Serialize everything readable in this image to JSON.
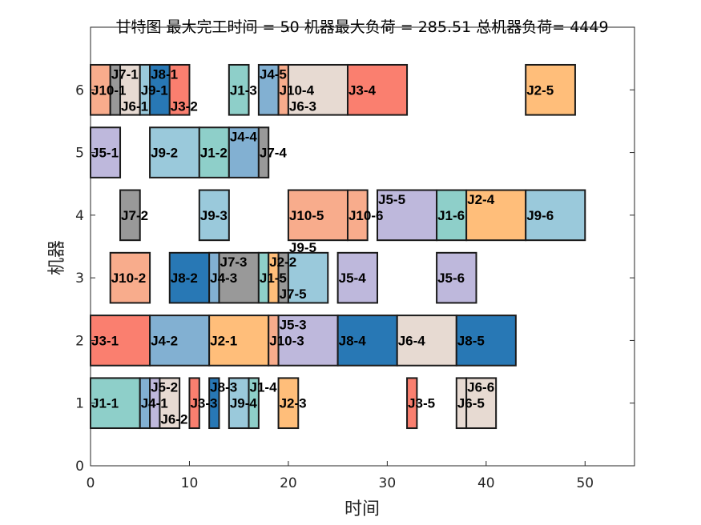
{
  "chart_data": {
    "type": "gantt",
    "title": "甘特图 最大完工时间 = 50 机器最大负荷 = 285.51 总机器负荷= 4449",
    "xlabel": "时间",
    "ylabel": "机器",
    "xlim": [
      0,
      55
    ],
    "ylim": [
      0,
      7
    ],
    "xticks": [
      "0",
      "10",
      "20",
      "30",
      "40",
      "50"
    ],
    "yticks": [
      "0",
      "1",
      "2",
      "3",
      "4",
      "5",
      "6"
    ],
    "job_colors": {
      "J1": "#8ECFC9",
      "J2": "#FFBE7A",
      "J3": "#FA7F6F",
      "J4": "#82B0D2",
      "J5": "#BEB8DC",
      "J6": "#E7DAD2",
      "J7": "#999999",
      "J8": "#2878B5",
      "J9": "#9AC9DB",
      "J10": "#F8AC8C"
    },
    "tasks": [
      {
        "machine": 1,
        "job": "J1",
        "label": "J1-1",
        "start": 0,
        "end": 5
      },
      {
        "machine": 1,
        "job": "J4",
        "label": "J4-1",
        "start": 5,
        "end": 6
      },
      {
        "machine": 1,
        "job": "J5",
        "label": "J5-2",
        "start": 6,
        "end": 7
      },
      {
        "machine": 1,
        "job": "J6",
        "label": "J6-2",
        "start": 7,
        "end": 9
      },
      {
        "machine": 1,
        "job": "J3",
        "label": "J3-3",
        "start": 10,
        "end": 11
      },
      {
        "machine": 1,
        "job": "J8",
        "label": "J8-3",
        "start": 12,
        "end": 13
      },
      {
        "machine": 1,
        "job": "J9",
        "label": "J9-4",
        "start": 14,
        "end": 16
      },
      {
        "machine": 1,
        "job": "J1",
        "label": "J1-4",
        "start": 16,
        "end": 17
      },
      {
        "machine": 1,
        "job": "J2",
        "label": "J2-3",
        "start": 19,
        "end": 21
      },
      {
        "machine": 1,
        "job": "J3",
        "label": "J3-5",
        "start": 32,
        "end": 33
      },
      {
        "machine": 1,
        "job": "J6",
        "label": "J6-5",
        "start": 37,
        "end": 38
      },
      {
        "machine": 1,
        "job": "J6",
        "label": "J6-6",
        "start": 38,
        "end": 41
      },
      {
        "machine": 2,
        "job": "J3",
        "label": "J3-1",
        "start": 0,
        "end": 6
      },
      {
        "machine": 2,
        "job": "J4",
        "label": "J4-2",
        "start": 6,
        "end": 12
      },
      {
        "machine": 2,
        "job": "J2",
        "label": "J2-1",
        "start": 12,
        "end": 18
      },
      {
        "machine": 2,
        "job": "J10",
        "label": "J10-3",
        "start": 18,
        "end": 19
      },
      {
        "machine": 2,
        "job": "J5",
        "label": "J5-3",
        "start": 19,
        "end": 25
      },
      {
        "machine": 2,
        "job": "J8",
        "label": "J8-4",
        "start": 25,
        "end": 31
      },
      {
        "machine": 2,
        "job": "J6",
        "label": "J6-4",
        "start": 31,
        "end": 37
      },
      {
        "machine": 2,
        "job": "J8",
        "label": "J8-5",
        "start": 37,
        "end": 43
      },
      {
        "machine": 3,
        "job": "J10",
        "label": "J10-2",
        "start": 2,
        "end": 6
      },
      {
        "machine": 3,
        "job": "J8",
        "label": "J8-2",
        "start": 8,
        "end": 12
      },
      {
        "machine": 3,
        "job": "J4",
        "label": "J4-3",
        "start": 12,
        "end": 13
      },
      {
        "machine": 3,
        "job": "J7",
        "label": "J7-3",
        "start": 13,
        "end": 17
      },
      {
        "machine": 3,
        "job": "J1",
        "label": "J1-5",
        "start": 17,
        "end": 18
      },
      {
        "machine": 3,
        "job": "J2",
        "label": "J2-2",
        "start": 18,
        "end": 19
      },
      {
        "machine": 3,
        "job": "J7",
        "label": "J7-5",
        "start": 19,
        "end": 20
      },
      {
        "machine": 3,
        "job": "J9",
        "label": "J9-5",
        "start": 20,
        "end": 24
      },
      {
        "machine": 3,
        "job": "J5",
        "label": "J5-4",
        "start": 25,
        "end": 29
      },
      {
        "machine": 3,
        "job": "J5",
        "label": "J5-6",
        "start": 35,
        "end": 39
      },
      {
        "machine": 4,
        "job": "J7",
        "label": "J7-2",
        "start": 3,
        "end": 5
      },
      {
        "machine": 4,
        "job": "J9",
        "label": "J9-3",
        "start": 11,
        "end": 14
      },
      {
        "machine": 4,
        "job": "J10",
        "label": "J10-5",
        "start": 20,
        "end": 26
      },
      {
        "machine": 4,
        "job": "J10",
        "label": "J10-6",
        "start": 26,
        "end": 28
      },
      {
        "machine": 4,
        "job": "J5",
        "label": "J5-5",
        "start": 29,
        "end": 35
      },
      {
        "machine": 4,
        "job": "J1",
        "label": "J1-6",
        "start": 35,
        "end": 38
      },
      {
        "machine": 4,
        "job": "J2",
        "label": "J2-4",
        "start": 38,
        "end": 44
      },
      {
        "machine": 4,
        "job": "J9",
        "label": "J9-6",
        "start": 44,
        "end": 50
      },
      {
        "machine": 5,
        "job": "J5",
        "label": "J5-1",
        "start": 0,
        "end": 3
      },
      {
        "machine": 5,
        "job": "J9",
        "label": "J9-2",
        "start": 6,
        "end": 11
      },
      {
        "machine": 5,
        "job": "J1",
        "label": "J1-2",
        "start": 11,
        "end": 14
      },
      {
        "machine": 5,
        "job": "J4",
        "label": "J4-4",
        "start": 14,
        "end": 17
      },
      {
        "machine": 5,
        "job": "J7",
        "label": "J7-4",
        "start": 17,
        "end": 18
      },
      {
        "machine": 6,
        "job": "J10",
        "label": "J10-1",
        "start": 0,
        "end": 2
      },
      {
        "machine": 6,
        "job": "J7",
        "label": "J7-1",
        "start": 2,
        "end": 3
      },
      {
        "machine": 6,
        "job": "J6",
        "label": "J6-1",
        "start": 3,
        "end": 5
      },
      {
        "machine": 6,
        "job": "J9",
        "label": "J9-1",
        "start": 5,
        "end": 6
      },
      {
        "machine": 6,
        "job": "J8",
        "label": "J8-1",
        "start": 6,
        "end": 8
      },
      {
        "machine": 6,
        "job": "J3",
        "label": "J3-2",
        "start": 8,
        "end": 10
      },
      {
        "machine": 6,
        "job": "J1",
        "label": "J1-3",
        "start": 14,
        "end": 16
      },
      {
        "machine": 6,
        "job": "J4",
        "label": "J4-5",
        "start": 17,
        "end": 19
      },
      {
        "machine": 6,
        "job": "J10",
        "label": "J10-4",
        "start": 19,
        "end": 20
      },
      {
        "machine": 6,
        "job": "J6",
        "label": "J6-3",
        "start": 20,
        "end": 26
      },
      {
        "machine": 6,
        "job": "J3",
        "label": "J3-4",
        "start": 26,
        "end": 32
      },
      {
        "machine": 6,
        "job": "J2",
        "label": "J2-5",
        "start": 44,
        "end": 49
      }
    ]
  }
}
